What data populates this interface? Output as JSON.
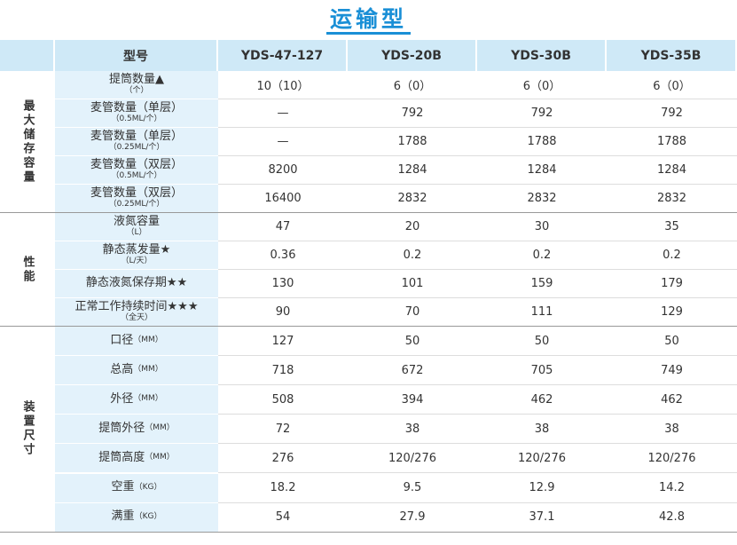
{
  "title": "运输型",
  "header": [
    "型号",
    "YDS-47-127",
    "YDS-20B",
    "YDS-30B",
    "YDS-35B"
  ],
  "groups": [
    {
      "label": "最大储存容量",
      "rows": [
        {
          "label": "提筒数量▲",
          "unit": "（个）",
          "values": [
            "10（10）",
            "6（0）",
            "6（0）",
            "6（0）"
          ]
        },
        {
          "label": "麦管数量（单层）",
          "unit": "（0.5ML/个）",
          "values": [
            "—",
            "792",
            "792",
            "792"
          ]
        },
        {
          "label": "麦管数量（单层）",
          "unit": "（0.25ML/个）",
          "values": [
            "—",
            "1788",
            "1788",
            "1788"
          ]
        },
        {
          "label": "麦管数量（双层）",
          "unit": "（0.5ML/个）",
          "values": [
            "8200",
            "1284",
            "1284",
            "1284"
          ]
        },
        {
          "label": "麦管数量（双层）",
          "unit": "（0.25ML/个）",
          "values": [
            "16400",
            "2832",
            "2832",
            "2832"
          ]
        }
      ]
    },
    {
      "label": "性能",
      "rows": [
        {
          "label": "液氮容量",
          "unit": "（L）",
          "values": [
            "47",
            "20",
            "30",
            "35"
          ]
        },
        {
          "label": "静态蒸发量★",
          "unit": "（L/天）",
          "values": [
            "0.36",
            "0.2",
            "0.2",
            "0.2"
          ]
        },
        {
          "label": "静态液氮保存期★★",
          "values": [
            "130",
            "101",
            "159",
            "179"
          ]
        },
        {
          "label": "正常工作持续时间★★★",
          "unit": "（全天）",
          "values": [
            "90",
            "70",
            "111",
            "129"
          ]
        }
      ]
    },
    {
      "label": "装置尺寸",
      "rows": [
        {
          "label": "口径",
          "unit": "（MM）",
          "values": [
            "127",
            "50",
            "50",
            "50"
          ]
        },
        {
          "label": "总高",
          "unit": "（MM）",
          "values": [
            "718",
            "672",
            "705",
            "749"
          ]
        },
        {
          "label": "外径",
          "unit": "（MM）",
          "values": [
            "508",
            "394",
            "462",
            "462"
          ]
        },
        {
          "label": "提筒外径",
          "unit": "（MM）",
          "values": [
            "72",
            "38",
            "38",
            "38"
          ]
        },
        {
          "label": "提筒高度",
          "unit": "（MM）",
          "values": [
            "276",
            "120/276",
            "120/276",
            "120/276"
          ]
        },
        {
          "label": "空重",
          "unit": "（KG）",
          "values": [
            "18.2",
            "9.5",
            "12.9",
            "14.2"
          ]
        },
        {
          "label": "满重",
          "unit": "（KG）",
          "values": [
            "54",
            "27.9",
            "37.1",
            "42.8"
          ]
        }
      ]
    }
  ]
}
